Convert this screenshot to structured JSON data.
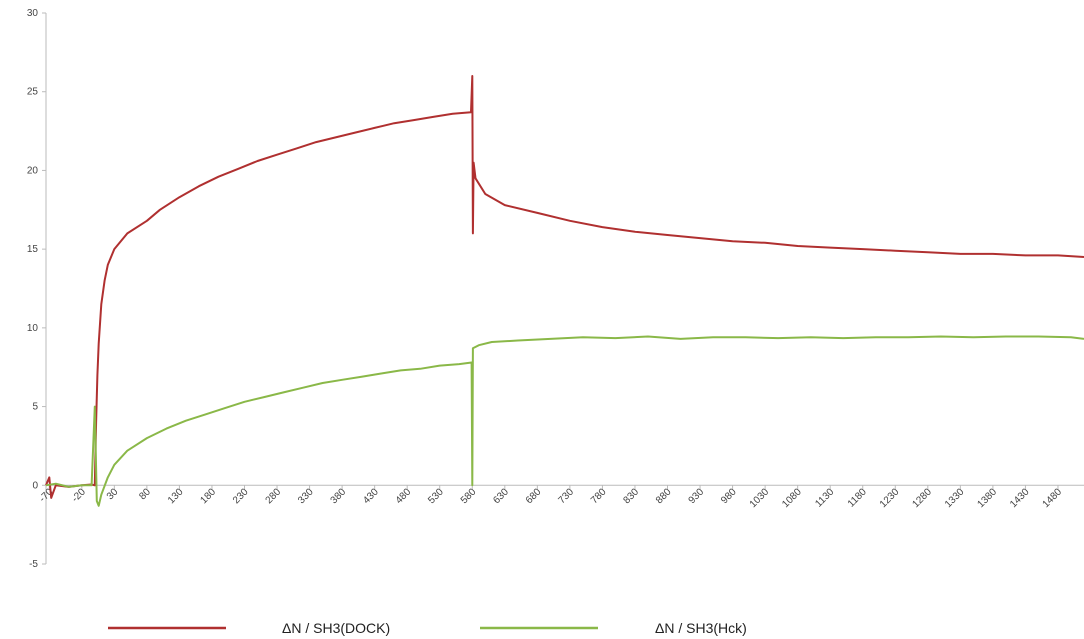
{
  "chart_data": {
    "type": "line",
    "title": "",
    "xlabel": "",
    "ylabel": "",
    "xlim": [
      -75,
      1520
    ],
    "ylim": [
      -5,
      30
    ],
    "y_ticks": [
      -5,
      0,
      5,
      10,
      15,
      20,
      25,
      30
    ],
    "x_ticks": [
      -70,
      -20,
      30,
      80,
      130,
      180,
      230,
      280,
      330,
      380,
      430,
      480,
      530,
      580,
      630,
      680,
      730,
      780,
      830,
      880,
      930,
      980,
      1030,
      1080,
      1130,
      1180,
      1230,
      1280,
      1330,
      1380,
      1430,
      1480
    ],
    "grid": false,
    "legend_position": "bottom",
    "series": [
      {
        "name": "ΔN / SH3(DOCK)",
        "color": "#b03030",
        "points": [
          [
            -75,
            0
          ],
          [
            -70,
            0.5
          ],
          [
            -67,
            -0.8
          ],
          [
            -60,
            0
          ],
          [
            -40,
            -0.1
          ],
          [
            -20,
            0
          ],
          [
            -5,
            0.05
          ],
          [
            0,
            0
          ],
          [
            2,
            4
          ],
          [
            4,
            7
          ],
          [
            6,
            9
          ],
          [
            10,
            11.5
          ],
          [
            15,
            13
          ],
          [
            20,
            14
          ],
          [
            30,
            15
          ],
          [
            50,
            16
          ],
          [
            80,
            16.8
          ],
          [
            100,
            17.5
          ],
          [
            130,
            18.3
          ],
          [
            160,
            19
          ],
          [
            190,
            19.6
          ],
          [
            220,
            20.1
          ],
          [
            250,
            20.6
          ],
          [
            280,
            21
          ],
          [
            310,
            21.4
          ],
          [
            340,
            21.8
          ],
          [
            370,
            22.1
          ],
          [
            400,
            22.4
          ],
          [
            430,
            22.7
          ],
          [
            460,
            23
          ],
          [
            490,
            23.2
          ],
          [
            520,
            23.4
          ],
          [
            550,
            23.6
          ],
          [
            578,
            23.7
          ],
          [
            580,
            26
          ],
          [
            581,
            16
          ],
          [
            582,
            20.5
          ],
          [
            585,
            19.5
          ],
          [
            600,
            18.5
          ],
          [
            630,
            17.8
          ],
          [
            680,
            17.3
          ],
          [
            730,
            16.8
          ],
          [
            780,
            16.4
          ],
          [
            830,
            16.1
          ],
          [
            880,
            15.9
          ],
          [
            930,
            15.7
          ],
          [
            980,
            15.5
          ],
          [
            1030,
            15.4
          ],
          [
            1080,
            15.2
          ],
          [
            1130,
            15.1
          ],
          [
            1180,
            15
          ],
          [
            1230,
            14.9
          ],
          [
            1280,
            14.8
          ],
          [
            1330,
            14.7
          ],
          [
            1380,
            14.7
          ],
          [
            1430,
            14.6
          ],
          [
            1480,
            14.6
          ],
          [
            1520,
            14.5
          ]
        ]
      },
      {
        "name": "ΔN / SH3(Hck)",
        "color": "#8ab848",
        "points": [
          [
            -75,
            0
          ],
          [
            -60,
            0.1
          ],
          [
            -40,
            -0.1
          ],
          [
            -20,
            0
          ],
          [
            -5,
            0
          ],
          [
            0,
            5
          ],
          [
            3,
            -1
          ],
          [
            6,
            -1.3
          ],
          [
            10,
            -0.6
          ],
          [
            20,
            0.5
          ],
          [
            30,
            1.3
          ],
          [
            50,
            2.2
          ],
          [
            80,
            3
          ],
          [
            110,
            3.6
          ],
          [
            140,
            4.1
          ],
          [
            170,
            4.5
          ],
          [
            200,
            4.9
          ],
          [
            230,
            5.3
          ],
          [
            260,
            5.6
          ],
          [
            290,
            5.9
          ],
          [
            320,
            6.2
          ],
          [
            350,
            6.5
          ],
          [
            380,
            6.7
          ],
          [
            410,
            6.9
          ],
          [
            440,
            7.1
          ],
          [
            470,
            7.3
          ],
          [
            500,
            7.4
          ],
          [
            530,
            7.6
          ],
          [
            560,
            7.7
          ],
          [
            579,
            7.8
          ],
          [
            580,
            0
          ],
          [
            581,
            8.7
          ],
          [
            590,
            8.9
          ],
          [
            610,
            9.1
          ],
          [
            650,
            9.2
          ],
          [
            700,
            9.3
          ],
          [
            750,
            9.4
          ],
          [
            800,
            9.35
          ],
          [
            850,
            9.45
          ],
          [
            900,
            9.3
          ],
          [
            950,
            9.4
          ],
          [
            1000,
            9.4
          ],
          [
            1050,
            9.35
          ],
          [
            1100,
            9.4
          ],
          [
            1150,
            9.35
          ],
          [
            1200,
            9.4
          ],
          [
            1250,
            9.4
          ],
          [
            1300,
            9.45
          ],
          [
            1350,
            9.4
          ],
          [
            1400,
            9.45
          ],
          [
            1450,
            9.45
          ],
          [
            1500,
            9.4
          ],
          [
            1520,
            9.3
          ]
        ]
      }
    ]
  }
}
